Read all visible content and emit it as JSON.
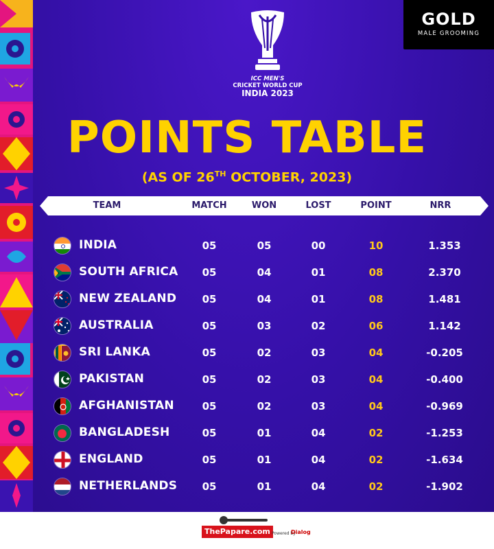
{
  "sponsor": {
    "brand": "GOLD",
    "tagline": "MALE GROOMING"
  },
  "logo": {
    "line1": "ICC MEN'S",
    "line2": "CRICKET WORLD CUP",
    "line3": "INDIA 2023"
  },
  "title": "POINTS TABLE",
  "subtitle": {
    "prefix": "(AS OF 26",
    "sup": "TH",
    "suffix": " OCTOBER, 2023)"
  },
  "columns": {
    "team": "TEAM",
    "match": "MATCH",
    "won": "WON",
    "lost": "LOST",
    "point": "POINT",
    "nrr": "NRR"
  },
  "colors": {
    "background": "#3510a8",
    "title": "#ffd200",
    "points": "#ffc81a"
  },
  "rows": [
    {
      "team": "INDIA",
      "flag": "india-flag-icon",
      "match": "05",
      "won": "05",
      "lost": "00",
      "point": "10",
      "nrr": "1.353"
    },
    {
      "team": "SOUTH AFRICA",
      "flag": "south-africa-flag-icon",
      "match": "05",
      "won": "04",
      "lost": "01",
      "point": "08",
      "nrr": "2.370"
    },
    {
      "team": "NEW ZEALAND",
      "flag": "new-zealand-flag-icon",
      "match": "05",
      "won": "04",
      "lost": "01",
      "point": "08",
      "nrr": "1.481"
    },
    {
      "team": "AUSTRALIA",
      "flag": "australia-flag-icon",
      "match": "05",
      "won": "03",
      "lost": "02",
      "point": "06",
      "nrr": "1.142"
    },
    {
      "team": "SRI LANKA",
      "flag": "sri-lanka-flag-icon",
      "match": "05",
      "won": "02",
      "lost": "03",
      "point": "04",
      "nrr": "-0.205"
    },
    {
      "team": "PAKISTAN",
      "flag": "pakistan-flag-icon",
      "match": "05",
      "won": "02",
      "lost": "03",
      "point": "04",
      "nrr": "-0.400"
    },
    {
      "team": "AFGHANISTAN",
      "flag": "afghanistan-flag-icon",
      "match": "05",
      "won": "02",
      "lost": "03",
      "point": "04",
      "nrr": "-0.969"
    },
    {
      "team": "BANGLADESH",
      "flag": "bangladesh-flag-icon",
      "match": "05",
      "won": "01",
      "lost": "04",
      "point": "02",
      "nrr": "-1.253"
    },
    {
      "team": "ENGLAND",
      "flag": "england-flag-icon",
      "match": "05",
      "won": "01",
      "lost": "04",
      "point": "02",
      "nrr": "-1.634"
    },
    {
      "team": "NETHERLANDS",
      "flag": "netherlands-flag-icon",
      "match": "05",
      "won": "01",
      "lost": "04",
      "point": "02",
      "nrr": "-1.902"
    }
  ],
  "footer": {
    "brand": "ThePapare.com",
    "powered": "Powered by",
    "partner": "Dialog"
  }
}
